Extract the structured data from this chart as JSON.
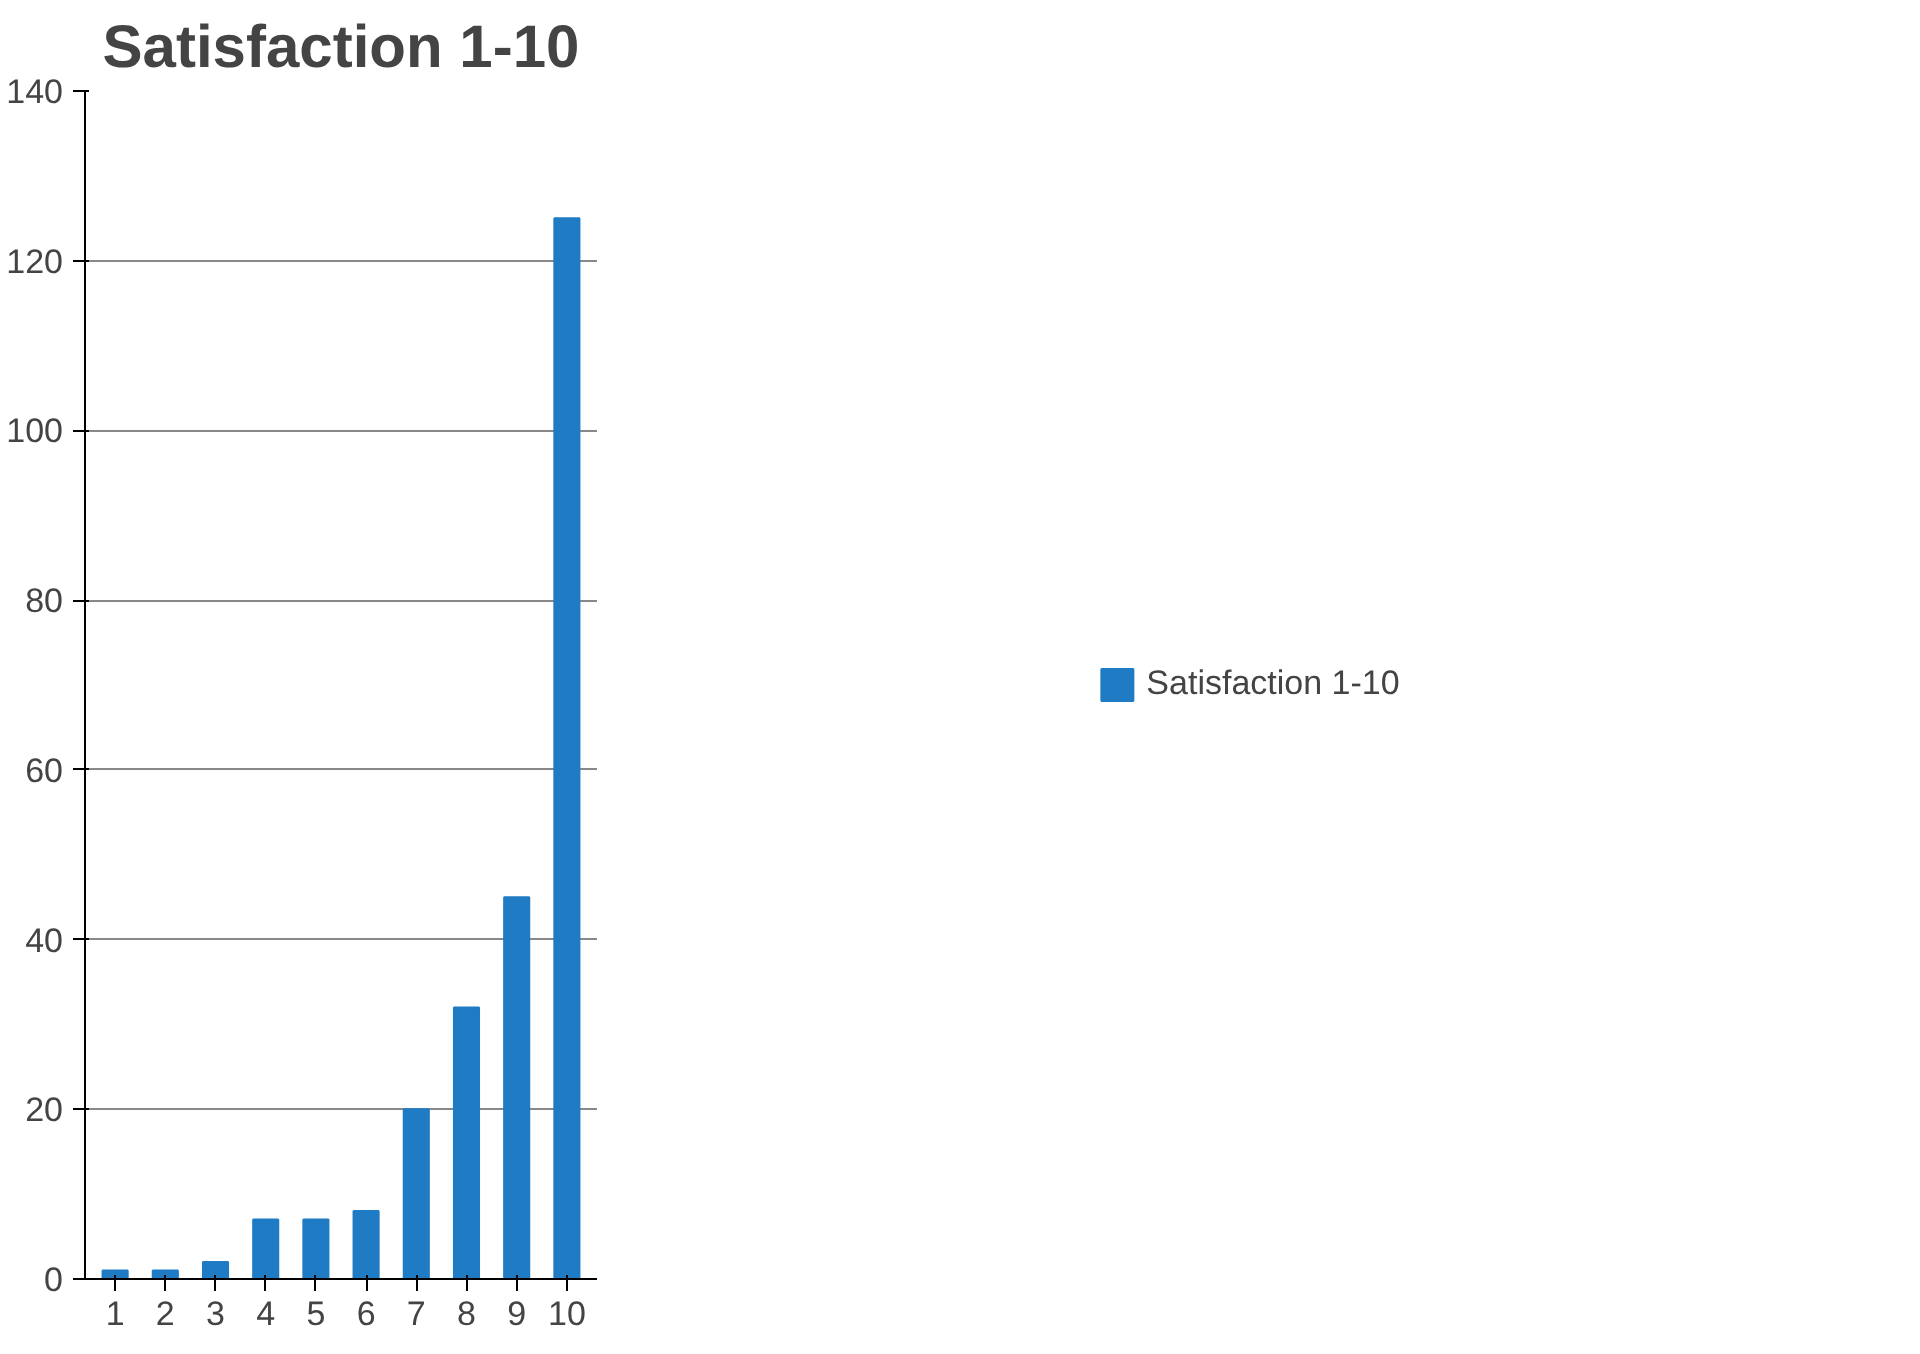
{
  "chart_data": {
    "type": "bar",
    "title": "Satisfaction 1-10",
    "categories": [
      "1",
      "2",
      "3",
      "4",
      "5",
      "6",
      "7",
      "8",
      "9",
      "10"
    ],
    "series": [
      {
        "name": "Satisfaction 1-10",
        "color": "#1f7bc4",
        "values": [
          1,
          1,
          2,
          7,
          7,
          8,
          20,
          32,
          45,
          125
        ]
      }
    ],
    "ylim": [
      0,
      140
    ],
    "yticks": [
      0,
      20,
      40,
      60,
      80,
      100,
      120,
      140
    ],
    "grid": "y",
    "legend": "right"
  }
}
